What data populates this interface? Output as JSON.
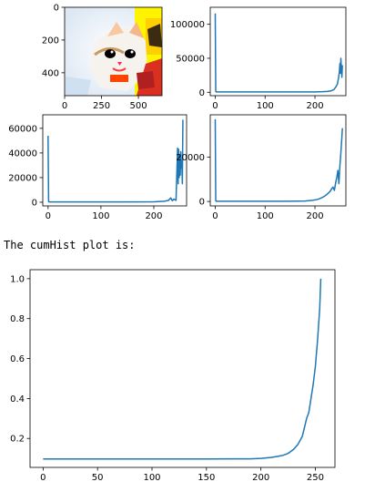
{
  "caption": "The cumHist plot is:",
  "colors": {
    "line": "#1f77b4"
  },
  "image_panel": {
    "x_ticks": [
      "0",
      "250",
      "500"
    ],
    "y_ticks": [
      "0",
      "200",
      "400"
    ],
    "xlim": [
      0,
      660
    ],
    "ylim": [
      0,
      540
    ],
    "content": "cartoon kitten photo (inverted colors)"
  },
  "chart_data": [
    {
      "type": "line",
      "x": [
        0,
        1,
        2,
        50,
        100,
        150,
        200,
        215,
        225,
        232,
        238,
        242,
        245,
        247,
        249,
        250,
        251,
        252,
        253,
        254,
        255
      ],
      "y": [
        116000,
        1500,
        500,
        500,
        500,
        500,
        600,
        800,
        1200,
        2000,
        4000,
        8000,
        12000,
        20000,
        30000,
        42000,
        28000,
        50000,
        34000,
        22000,
        40000
      ],
      "xlim": [
        -10,
        262
      ],
      "ylim": [
        -5000,
        125000
      ],
      "x_ticks": [
        0,
        100,
        200
      ],
      "y_ticks": [
        0,
        50000,
        100000
      ],
      "y_tick_labels": [
        "0",
        "50000",
        "100000"
      ]
    },
    {
      "type": "line",
      "x": [
        0,
        1,
        2,
        50,
        100,
        150,
        200,
        220,
        228,
        232,
        235,
        238,
        242,
        245,
        246,
        247,
        248,
        249,
        250,
        251,
        252,
        253,
        254,
        255
      ],
      "y": [
        54000,
        500,
        200,
        200,
        200,
        200,
        300,
        800,
        1500,
        3500,
        1200,
        2500,
        1500,
        44000,
        15000,
        43000,
        20000,
        38000,
        22000,
        41000,
        28000,
        33000,
        15000,
        67000
      ],
      "xlim": [
        -10,
        262
      ],
      "ylim": [
        -3000,
        71000
      ],
      "x_ticks": [
        0,
        100,
        200
      ],
      "y_ticks": [
        0,
        20000,
        40000,
        60000
      ],
      "y_tick_labels": [
        "0",
        "20000",
        "40000",
        "60000"
      ]
    },
    {
      "type": "line",
      "x": [
        0,
        1,
        2,
        50,
        100,
        150,
        180,
        195,
        205,
        212,
        218,
        223,
        227,
        230,
        233,
        236,
        239,
        242,
        244,
        246,
        248,
        250,
        252,
        254,
        255
      ],
      "y": [
        37000,
        300,
        100,
        100,
        100,
        100,
        200,
        500,
        900,
        1500,
        2200,
        3000,
        3800,
        4500,
        5500,
        6500,
        5000,
        9000,
        11000,
        14000,
        8000,
        16000,
        22000,
        29000,
        33000
      ],
      "xlim": [
        -10,
        262
      ],
      "ylim": [
        -2000,
        39000
      ],
      "x_ticks": [
        0,
        100,
        200
      ],
      "y_ticks": [
        0,
        20000
      ],
      "y_tick_labels": [
        "0",
        "20000"
      ]
    },
    {
      "type": "line",
      "x": [
        0,
        50,
        100,
        150,
        190,
        200,
        210,
        220,
        225,
        230,
        234,
        238,
        240,
        242,
        244,
        246,
        248,
        250,
        252,
        254,
        255
      ],
      "y": [
        0.097,
        0.097,
        0.097,
        0.097,
        0.098,
        0.1,
        0.105,
        0.115,
        0.125,
        0.145,
        0.17,
        0.21,
        0.255,
        0.3,
        0.33,
        0.4,
        0.47,
        0.56,
        0.69,
        0.85,
        1.0
      ],
      "xlim": [
        -12,
        268
      ],
      "ylim": [
        0.055,
        1.045
      ],
      "x_ticks": [
        0,
        50,
        100,
        150,
        200,
        250
      ],
      "y_ticks": [
        0.2,
        0.4,
        0.6,
        0.8,
        1.0
      ],
      "y_tick_labels": [
        "0.2",
        "0.4",
        "0.6",
        "0.8",
        "1.0"
      ]
    }
  ]
}
